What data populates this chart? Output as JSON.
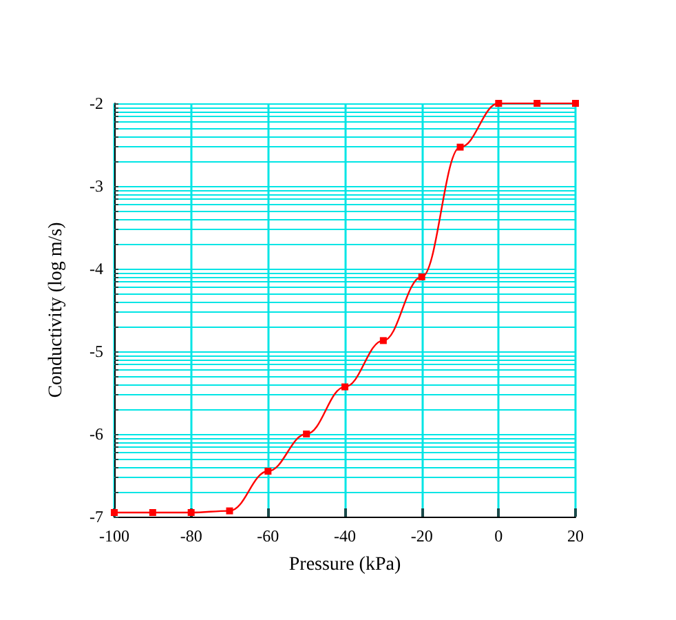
{
  "chart_data": {
    "type": "line",
    "xlabel": "Pressure (kPa)",
    "ylabel": "Conductivity (log m/s)",
    "x": [
      -100,
      -90,
      -80,
      -70,
      -60,
      -50,
      -40,
      -30,
      -20,
      -10,
      0,
      10,
      20
    ],
    "series": [
      {
        "color": "#ff0000",
        "values": [
          -6.95,
          -6.95,
          -6.95,
          -6.93,
          -6.45,
          -6.0,
          -5.43,
          -4.87,
          -4.1,
          -2.53,
          -2.0,
          -2.0,
          -2.0
        ]
      }
    ],
    "xlim": [
      -100,
      20
    ],
    "xticks": [
      -100,
      -80,
      -60,
      -40,
      -20,
      0,
      20
    ],
    "ylim": [
      -7,
      -2
    ],
    "yticks": [
      -7,
      -6,
      -5,
      -4,
      -3,
      -2,
      {
        "value": -6.7,
        "label": null
      },
      {
        "value": -6.52,
        "label": null
      },
      {
        "value": -6.4,
        "label": null
      },
      {
        "value": -6.3,
        "label": null
      },
      {
        "value": -6.22,
        "label": null
      },
      {
        "value": -6.15,
        "label": null
      },
      {
        "value": -6.1,
        "label": null
      },
      {
        "value": -6.05,
        "label": null
      },
      {
        "value": -5.7,
        "label": null
      },
      {
        "value": -5.52,
        "label": null
      },
      {
        "value": -5.4,
        "label": null
      },
      {
        "value": -5.3,
        "label": null
      },
      {
        "value": -5.22,
        "label": null
      },
      {
        "value": -5.15,
        "label": null
      },
      {
        "value": -5.1,
        "label": null
      },
      {
        "value": -5.05,
        "label": null
      },
      {
        "value": -4.7,
        "label": null
      },
      {
        "value": -4.52,
        "label": null
      },
      {
        "value": -4.4,
        "label": null
      },
      {
        "value": -4.3,
        "label": null
      },
      {
        "value": -4.22,
        "label": null
      },
      {
        "value": -4.15,
        "label": null
      },
      {
        "value": -4.1,
        "label": null
      },
      {
        "value": -4.05,
        "label": null
      },
      {
        "value": -3.7,
        "label": null
      },
      {
        "value": -3.52,
        "label": null
      },
      {
        "value": -3.4,
        "label": null
      },
      {
        "value": -3.3,
        "label": null
      },
      {
        "value": -3.22,
        "label": null
      },
      {
        "value": -3.15,
        "label": null
      },
      {
        "value": -3.1,
        "label": null
      },
      {
        "value": -3.05,
        "label": null
      },
      {
        "value": -2.7,
        "label": null
      },
      {
        "value": -2.52,
        "label": null
      },
      {
        "value": -2.4,
        "label": null
      },
      {
        "value": -2.3,
        "label": null
      },
      {
        "value": -2.22,
        "label": null
      },
      {
        "value": -2.15,
        "label": null
      },
      {
        "value": -2.1,
        "label": null
      },
      {
        "value": -2.05,
        "label": null
      }
    ],
    "grid": true,
    "marker": "square",
    "line_style": "solid"
  }
}
